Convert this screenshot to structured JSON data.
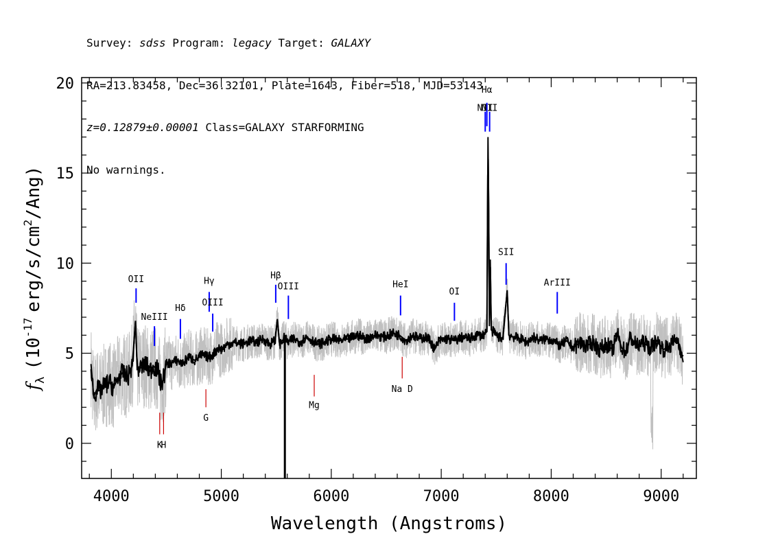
{
  "header": {
    "line1": {
      "survey_label": "Survey:",
      "survey": "sdss",
      "program_label": "Program:",
      "program": "legacy",
      "target_label": "Target:",
      "target": "GALAXY"
    },
    "line2": "RA=213.83458, Dec=36.32101, Plate=1643, Fiber=518, MJD=53143",
    "line3": {
      "z": "z=0.12879±0.00001",
      "class": "Class=GALAXY STARFORMING"
    },
    "line4": "No warnings."
  },
  "chart_data": {
    "type": "line",
    "xlabel": "Wavelength (Angstroms)",
    "ylabel_symbol": "f",
    "ylabel_subscript": "λ",
    "ylabel_unit_prefix": "(10",
    "ylabel_unit_exponent": "-17",
    "ylabel_unit_mid": "erg/s/cm",
    "ylabel_unit_exponent2": "2",
    "ylabel_unit_suffix": "/Ang)",
    "xlim": [
      3730,
      9320
    ],
    "ylim": [
      -1.95,
      20.3
    ],
    "xticks": [
      4000,
      5000,
      6000,
      7000,
      8000,
      9000
    ],
    "xtick_labels": [
      "4000",
      "5000",
      "6000",
      "7000",
      "8000",
      "9000"
    ],
    "yticks": [
      0,
      5,
      10,
      15,
      20
    ],
    "ytick_labels": [
      "0",
      "5",
      "10",
      "15",
      "20"
    ],
    "x_minor_step": 200,
    "y_minor_step": 1,
    "grid": false,
    "series": [
      {
        "role": "smoothed flux",
        "color": "#000000",
        "points": [
          [
            3815,
            4.4
          ],
          [
            3840,
            2.6
          ],
          [
            3870,
            3.0
          ],
          [
            3900,
            2.9
          ],
          [
            3940,
            3.2
          ],
          [
            3980,
            3.4
          ],
          [
            4020,
            3.1
          ],
          [
            4060,
            3.6
          ],
          [
            4100,
            3.9
          ],
          [
            4150,
            3.7
          ],
          [
            4190,
            4.3
          ],
          [
            4220,
            6.8
          ],
          [
            4235,
            4.1
          ],
          [
            4270,
            4.2
          ],
          [
            4310,
            4.4
          ],
          [
            4350,
            4.0
          ],
          [
            4380,
            4.3
          ],
          [
            4420,
            4.1
          ],
          [
            4450,
            3.3
          ],
          [
            4470,
            3.5
          ],
          [
            4500,
            4.4
          ],
          [
            4560,
            4.5
          ],
          [
            4600,
            4.6
          ],
          [
            4650,
            4.4
          ],
          [
            4700,
            4.8
          ],
          [
            4760,
            4.6
          ],
          [
            4820,
            4.9
          ],
          [
            4870,
            4.8
          ],
          [
            4900,
            4.8
          ],
          [
            4935,
            5.0
          ],
          [
            4970,
            5.3
          ],
          [
            5000,
            5.2
          ],
          [
            5060,
            5.5
          ],
          [
            5120,
            5.6
          ],
          [
            5200,
            5.5
          ],
          [
            5260,
            5.7
          ],
          [
            5320,
            5.6
          ],
          [
            5380,
            5.8
          ],
          [
            5440,
            5.5
          ],
          [
            5490,
            5.7
          ],
          [
            5510,
            6.9
          ],
          [
            5530,
            5.5
          ],
          [
            5580,
            5.9
          ],
          [
            5600,
            5.6
          ],
          [
            5660,
            5.8
          ],
          [
            5720,
            5.6
          ],
          [
            5770,
            5.9
          ],
          [
            5830,
            5.7
          ],
          [
            5880,
            5.5
          ],
          [
            5940,
            5.6
          ],
          [
            6000,
            5.8
          ],
          [
            6080,
            5.7
          ],
          [
            6160,
            5.8
          ],
          [
            6240,
            6.0
          ],
          [
            6320,
            5.8
          ],
          [
            6400,
            6.0
          ],
          [
            6480,
            5.9
          ],
          [
            6560,
            6.1
          ],
          [
            6620,
            6.0
          ],
          [
            6680,
            5.7
          ],
          [
            6740,
            6.0
          ],
          [
            6800,
            5.8
          ],
          [
            6860,
            5.9
          ],
          [
            6900,
            5.7
          ],
          [
            6940,
            5.2
          ],
          [
            6980,
            5.7
          ],
          [
            7050,
            5.8
          ],
          [
            7120,
            5.7
          ],
          [
            7200,
            5.9
          ],
          [
            7260,
            5.8
          ],
          [
            7320,
            6.0
          ],
          [
            7380,
            6.0
          ],
          [
            7415,
            6.2
          ],
          [
            7425,
            17.0
          ],
          [
            7432,
            12.7
          ],
          [
            7438,
            6.5
          ],
          [
            7446,
            10.2
          ],
          [
            7455,
            6.3
          ],
          [
            7500,
            6.0
          ],
          [
            7560,
            5.8
          ],
          [
            7600,
            8.5
          ],
          [
            7615,
            6.0
          ],
          [
            7660,
            5.9
          ],
          [
            7720,
            5.8
          ],
          [
            7780,
            5.6
          ],
          [
            7840,
            5.9
          ],
          [
            7900,
            5.7
          ],
          [
            7960,
            5.8
          ],
          [
            8020,
            5.7
          ],
          [
            8080,
            5.4
          ],
          [
            8140,
            5.7
          ],
          [
            8200,
            5.3
          ],
          [
            8260,
            5.6
          ],
          [
            8320,
            5.4
          ],
          [
            8380,
            5.6
          ],
          [
            8440,
            5.2
          ],
          [
            8500,
            5.5
          ],
          [
            8560,
            5.2
          ],
          [
            8600,
            6.1
          ],
          [
            8640,
            5.3
          ],
          [
            8680,
            5.1
          ],
          [
            8720,
            5.9
          ],
          [
            8780,
            5.4
          ],
          [
            8840,
            5.6
          ],
          [
            8900,
            5.3
          ],
          [
            8960,
            5.7
          ],
          [
            9020,
            5.2
          ],
          [
            9080,
            5.4
          ],
          [
            9140,
            5.8
          ],
          [
            9170,
            5.4
          ],
          [
            9200,
            4.5
          ]
        ]
      }
    ],
    "flux_dropout": {
      "x": 5578,
      "y_bottom": -1.95
    },
    "noise_band_color": "#c0c0c0",
    "emission_lines": [
      {
        "label": "OII",
        "x": 4225,
        "y_top": 8.6,
        "y_bottom": 7.8,
        "label_y": 8.8
      },
      {
        "label": "NeIII",
        "x": 4392,
        "y_top": 6.5,
        "y_bottom": 5.4,
        "label_y": 6.7
      },
      {
        "label": "Hδ",
        "x": 4628,
        "y_top": 6.9,
        "y_bottom": 5.8,
        "label_y": 7.2
      },
      {
        "label": "Hγ",
        "x": 4890,
        "y_top": 8.4,
        "y_bottom": 7.3,
        "label_y": 8.7
      },
      {
        "label": "OIII",
        "x": 4922,
        "y_top": 7.2,
        "y_bottom": 6.2,
        "label_y": 7.5
      },
      {
        "label": "Hβ",
        "x": 5495,
        "y_top": 8.8,
        "y_bottom": 7.8,
        "label_y": 9.0
      },
      {
        "label": "OIII",
        "x": 5610,
        "y_top": 8.2,
        "y_bottom": 6.9,
        "label_y": 8.4
      },
      {
        "label": "HeI",
        "x": 6630,
        "y_top": 8.2,
        "y_bottom": 7.1,
        "label_y": 8.5
      },
      {
        "label": "OI",
        "x": 7120,
        "y_top": 7.8,
        "y_bottom": 6.8,
        "label_y": 8.1
      },
      {
        "label": "NII",
        "x": 7400,
        "y_top": 18.4,
        "y_bottom": 17.3,
        "label_y": 18.3
      },
      {
        "label": "Hα",
        "x": 7415,
        "y_top": 18.9,
        "y_bottom": 17.6,
        "label_y": 19.3
      },
      {
        "label": "NII",
        "x": 7440,
        "y_top": 18.4,
        "y_bottom": 17.3,
        "label_y": 18.3
      },
      {
        "label": "SII",
        "x": 7590,
        "y_top": 10.0,
        "y_bottom": 8.8,
        "label_y": 10.3
      },
      {
        "label": "ArIII",
        "x": 8055,
        "y_top": 8.4,
        "y_bottom": 7.2,
        "label_y": 8.6
      }
    ],
    "absorption_lines": [
      {
        "label": "K",
        "x": 4440,
        "y_top": 1.7,
        "y_bottom": 0.5,
        "label_y": -0.1
      },
      {
        "label": "H",
        "x": 4475,
        "y_top": 1.7,
        "y_bottom": 0.5,
        "label_y": -0.1
      },
      {
        "label": "G",
        "x": 4860,
        "y_top": 3.0,
        "y_bottom": 2.0,
        "label_y": 1.4
      },
      {
        "label": "Mg",
        "x": 5845,
        "y_top": 3.8,
        "y_bottom": 2.6,
        "label_y": 2.1
      },
      {
        "label": "Na D",
        "x": 6645,
        "y_top": 4.8,
        "y_bottom": 3.6,
        "label_y": 3.0
      }
    ],
    "colors": {
      "emission": "#0000ff",
      "absorption": "#cc0000",
      "flux": "#000000",
      "noise": "#c0c0c0"
    }
  }
}
